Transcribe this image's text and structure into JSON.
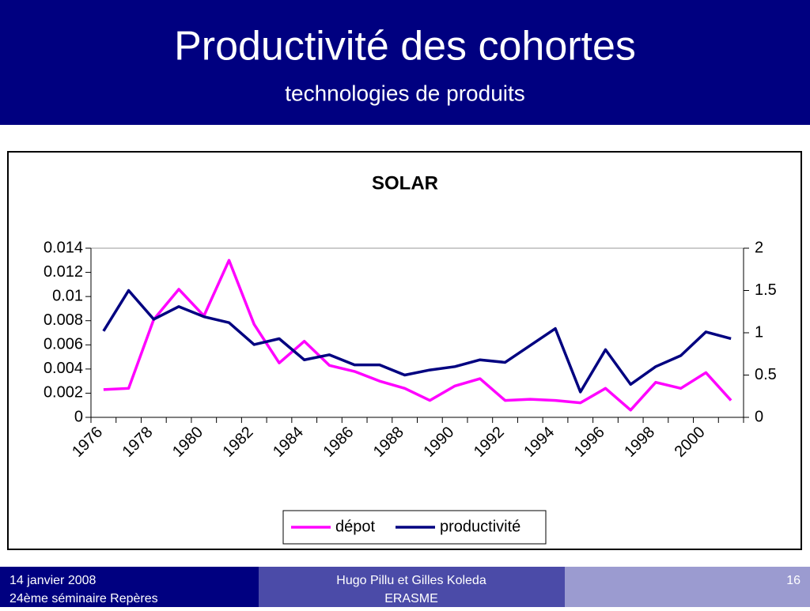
{
  "header": {
    "title": "Productivité des cohortes",
    "subtitle": "technologies de produits"
  },
  "footer": {
    "date": "14 janvier 2008",
    "event": "24ème séminaire Repères",
    "authors": "Hugo Pillu et Gilles Koleda",
    "org": "ERASME",
    "page": "16"
  },
  "chart_data": {
    "type": "line",
    "title": "SOLAR",
    "categories": [
      "1976",
      null,
      "1978",
      null,
      "1980",
      null,
      "1982",
      null,
      "1984",
      null,
      "1986",
      null,
      "1988",
      null,
      "1990",
      null,
      "1992",
      null,
      "1994",
      null,
      "1996",
      null,
      "1998",
      null,
      "2000",
      null
    ],
    "series": [
      {
        "name": "dépot",
        "color": "#ff00ff",
        "values": [
          0.0023,
          0.0024,
          0.0081,
          0.0106,
          0.0084,
          0.013,
          0.0077,
          0.0045,
          0.0063,
          0.0043,
          0.0038,
          0.003,
          0.0024,
          0.0014,
          0.0026,
          0.0032,
          0.0014,
          0.0015,
          0.0014,
          0.0012,
          0.0024,
          0.0006,
          0.0029,
          0.0024,
          0.0037,
          0.0014
        ]
      },
      {
        "name": "productivité",
        "color": "#000080",
        "axis": "y2",
        "values": [
          1.02,
          1.5,
          1.16,
          1.31,
          1.19,
          1.12,
          0.86,
          0.93,
          0.68,
          0.74,
          0.62,
          0.62,
          0.5,
          0.56,
          0.6,
          0.68,
          0.65,
          0.85,
          1.05,
          0.3,
          0.8,
          0.39,
          0.6,
          0.73,
          1.01,
          0.93
        ]
      }
    ],
    "ylim": [
      0,
      0.014
    ],
    "yticks": [
      0,
      0.002,
      0.004,
      0.006,
      0.008,
      0.01,
      0.012,
      0.014
    ],
    "y2lim": [
      0,
      2
    ],
    "y2ticks": [
      0,
      0.5,
      1,
      1.5,
      2
    ],
    "legend": "bottom"
  }
}
